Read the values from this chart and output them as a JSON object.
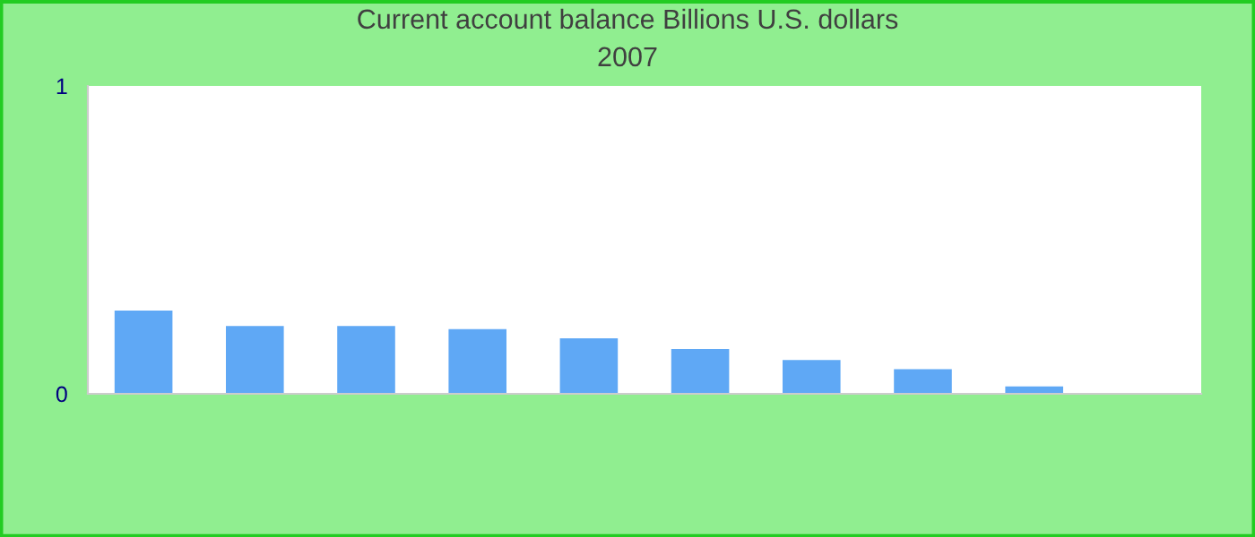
{
  "chart_data": {
    "type": "bar",
    "title": "Current account balance Billions U.S. dollars",
    "subtitle": "2007",
    "categories": [
      null,
      null,
      null,
      null,
      null,
      null,
      null,
      null,
      null,
      null
    ],
    "values": [
      0.27,
      0.22,
      0.22,
      0.21,
      0.18,
      0.145,
      0.11,
      0.08,
      0.024,
      null
    ],
    "color": "#5fa8f5",
    "ylim": [
      0,
      1
    ],
    "yticks": [
      0,
      1
    ],
    "grid": false,
    "legend": false
  }
}
